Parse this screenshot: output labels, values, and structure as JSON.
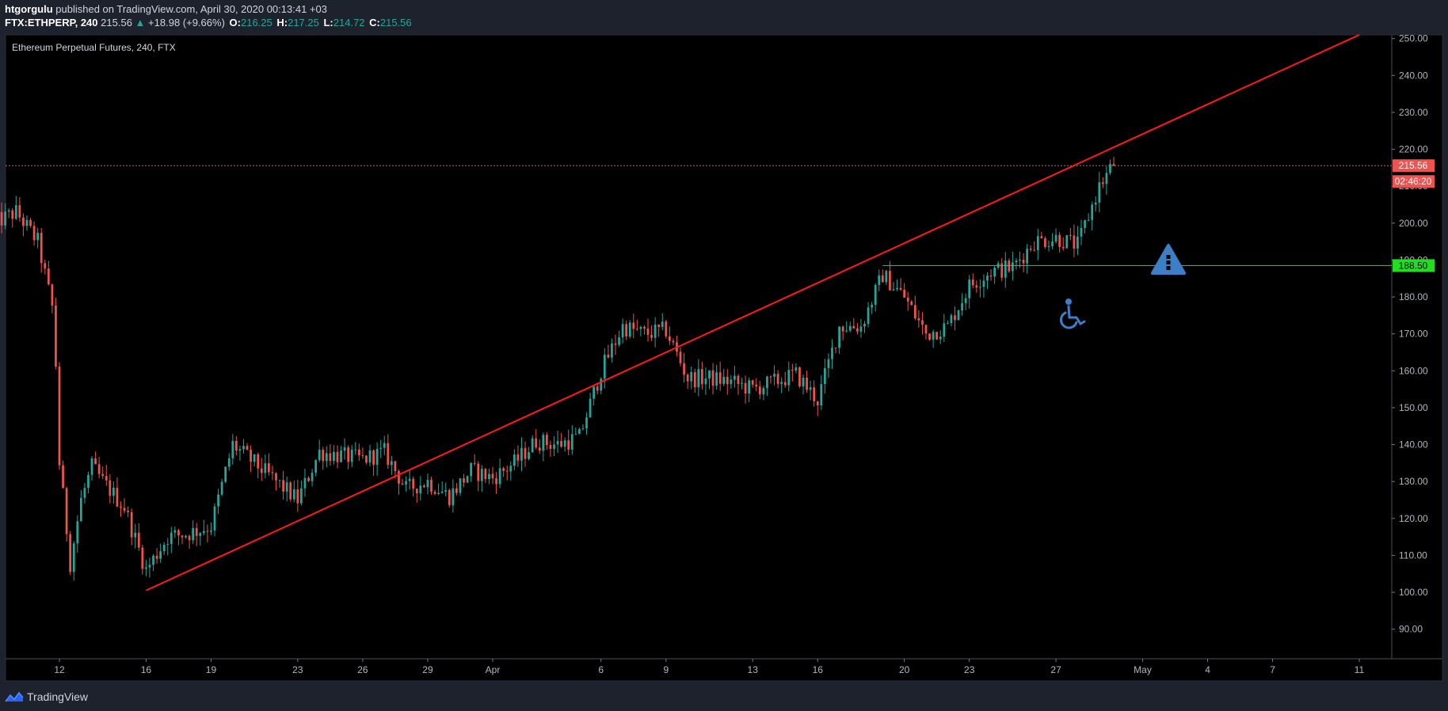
{
  "header": {
    "author": "htgorgulu",
    "published": " published on TradingView.com, April 30, 2020 00:13:41 +03",
    "symbol": "FTX:ETHPERP, 240",
    "last": "215.56",
    "change": "+18.98 (+9.66%)",
    "ohlc": [
      {
        "label": "O:",
        "value": "216.25"
      },
      {
        "label": "H:",
        "value": "217.25"
      },
      {
        "label": "L:",
        "value": "214.72"
      },
      {
        "label": "C:",
        "value": "215.56"
      }
    ]
  },
  "footer": {
    "brand": "TradingView"
  },
  "colors": {
    "background": "#000000",
    "frame": "#1e222d",
    "up": "#26a69a",
    "down": "#ef5350",
    "trendline": "#ff1a1a",
    "support": "#22dd22",
    "icon_blue": "#3d7fc7"
  },
  "chart_data": {
    "type": "candlestick",
    "title": "Ethereum Perpetual Futures, 240, FTX",
    "y_ticks": [
      "90.00",
      "100.00",
      "110.00",
      "120.00",
      "130.00",
      "140.00",
      "150.00",
      "160.00",
      "170.00",
      "180.00",
      "190.00",
      "200.00",
      "210.00",
      "220.00",
      "230.00",
      "240.00",
      "250.00"
    ],
    "x_ticks": [
      "12",
      "16",
      "19",
      "23",
      "26",
      "29",
      "Apr",
      "6",
      "9",
      "13",
      "16",
      "20",
      "23",
      "27",
      "May",
      "4",
      "7",
      "11"
    ],
    "ylim": [
      82,
      251
    ],
    "grid": false,
    "last_price": {
      "value": 215.56,
      "label": "215.56",
      "countdown": "02:46:20"
    },
    "support_level": {
      "value": 188.5,
      "label": "188.50"
    },
    "trendline": {
      "from": {
        "date": "2020-03-16",
        "value": 100.5
      },
      "to": {
        "date": "2020-05-11",
        "value": 251
      }
    },
    "price_path": [
      {
        "date": "2020-03-09",
        "value": 200
      },
      {
        "date": "2020-03-10",
        "value": 203
      },
      {
        "date": "2020-03-11",
        "value": 195
      },
      {
        "date": "2020-03-11T18:00",
        "value": 175
      },
      {
        "date": "2020-03-12",
        "value": 135
      },
      {
        "date": "2020-03-12T12:00",
        "value": 108
      },
      {
        "date": "2020-03-13",
        "value": 125
      },
      {
        "date": "2020-03-13T12:00",
        "value": 134
      },
      {
        "date": "2020-03-14",
        "value": 130
      },
      {
        "date": "2020-03-15",
        "value": 123
      },
      {
        "date": "2020-03-16",
        "value": 106
      },
      {
        "date": "2020-03-17",
        "value": 115
      },
      {
        "date": "2020-03-18",
        "value": 116
      },
      {
        "date": "2020-03-19",
        "value": 118
      },
      {
        "date": "2020-03-20",
        "value": 140
      },
      {
        "date": "2020-03-21",
        "value": 135
      },
      {
        "date": "2020-03-22",
        "value": 130
      },
      {
        "date": "2020-03-23",
        "value": 125
      },
      {
        "date": "2020-03-24",
        "value": 138
      },
      {
        "date": "2020-03-25",
        "value": 137
      },
      {
        "date": "2020-03-26",
        "value": 136
      },
      {
        "date": "2020-03-27",
        "value": 138
      },
      {
        "date": "2020-03-28",
        "value": 128
      },
      {
        "date": "2020-03-29",
        "value": 130
      },
      {
        "date": "2020-03-30",
        "value": 126
      },
      {
        "date": "2020-03-31",
        "value": 133
      },
      {
        "date": "2020-04-01",
        "value": 131
      },
      {
        "date": "2020-04-02",
        "value": 135
      },
      {
        "date": "2020-04-03",
        "value": 141
      },
      {
        "date": "2020-04-04",
        "value": 140
      },
      {
        "date": "2020-04-05",
        "value": 142
      },
      {
        "date": "2020-04-06",
        "value": 160
      },
      {
        "date": "2020-04-07",
        "value": 172
      },
      {
        "date": "2020-04-08",
        "value": 170
      },
      {
        "date": "2020-04-09",
        "value": 171
      },
      {
        "date": "2020-04-10",
        "value": 158
      },
      {
        "date": "2020-04-11",
        "value": 158
      },
      {
        "date": "2020-04-12",
        "value": 157
      },
      {
        "date": "2020-04-13",
        "value": 155
      },
      {
        "date": "2020-04-14",
        "value": 157
      },
      {
        "date": "2020-04-15",
        "value": 159
      },
      {
        "date": "2020-04-16",
        "value": 152
      },
      {
        "date": "2020-04-17",
        "value": 172
      },
      {
        "date": "2020-04-18",
        "value": 172
      },
      {
        "date": "2020-04-19",
        "value": 186
      },
      {
        "date": "2020-04-20",
        "value": 180
      },
      {
        "date": "2020-04-21",
        "value": 170
      },
      {
        "date": "2020-04-22",
        "value": 172
      },
      {
        "date": "2020-04-23",
        "value": 183
      },
      {
        "date": "2020-04-24",
        "value": 187
      },
      {
        "date": "2020-04-25",
        "value": 188
      },
      {
        "date": "2020-04-26",
        "value": 195
      },
      {
        "date": "2020-04-27",
        "value": 196
      },
      {
        "date": "2020-04-28",
        "value": 194
      },
      {
        "date": "2020-04-29",
        "value": 210
      },
      {
        "date": "2020-04-29T16:00",
        "value": 216
      }
    ]
  }
}
